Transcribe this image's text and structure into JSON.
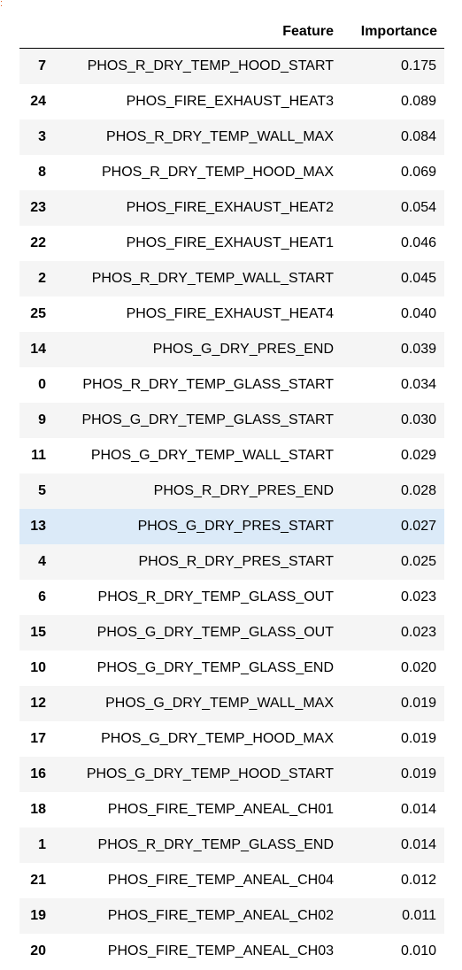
{
  "table": {
    "columns": {
      "index": "",
      "feature": "Feature",
      "importance": "Importance"
    },
    "selected_index": "13",
    "rows": [
      {
        "index": "7",
        "feature": "PHOS_R_DRY_TEMP_HOOD_START",
        "importance": "0.175"
      },
      {
        "index": "24",
        "feature": "PHOS_FIRE_EXHAUST_HEAT3",
        "importance": "0.089"
      },
      {
        "index": "3",
        "feature": "PHOS_R_DRY_TEMP_WALL_MAX",
        "importance": "0.084"
      },
      {
        "index": "8",
        "feature": "PHOS_R_DRY_TEMP_HOOD_MAX",
        "importance": "0.069"
      },
      {
        "index": "23",
        "feature": "PHOS_FIRE_EXHAUST_HEAT2",
        "importance": "0.054"
      },
      {
        "index": "22",
        "feature": "PHOS_FIRE_EXHAUST_HEAT1",
        "importance": "0.046"
      },
      {
        "index": "2",
        "feature": "PHOS_R_DRY_TEMP_WALL_START",
        "importance": "0.045"
      },
      {
        "index": "25",
        "feature": "PHOS_FIRE_EXHAUST_HEAT4",
        "importance": "0.040"
      },
      {
        "index": "14",
        "feature": "PHOS_G_DRY_PRES_END",
        "importance": "0.039"
      },
      {
        "index": "0",
        "feature": "PHOS_R_DRY_TEMP_GLASS_START",
        "importance": "0.034"
      },
      {
        "index": "9",
        "feature": "PHOS_G_DRY_TEMP_GLASS_START",
        "importance": "0.030"
      },
      {
        "index": "11",
        "feature": "PHOS_G_DRY_TEMP_WALL_START",
        "importance": "0.029"
      },
      {
        "index": "5",
        "feature": "PHOS_R_DRY_PRES_END",
        "importance": "0.028"
      },
      {
        "index": "13",
        "feature": "PHOS_G_DRY_PRES_START",
        "importance": "0.027"
      },
      {
        "index": "4",
        "feature": "PHOS_R_DRY_PRES_START",
        "importance": "0.025"
      },
      {
        "index": "6",
        "feature": "PHOS_R_DRY_TEMP_GLASS_OUT",
        "importance": "0.023"
      },
      {
        "index": "15",
        "feature": "PHOS_G_DRY_TEMP_GLASS_OUT",
        "importance": "0.023"
      },
      {
        "index": "10",
        "feature": "PHOS_G_DRY_TEMP_GLASS_END",
        "importance": "0.020"
      },
      {
        "index": "12",
        "feature": "PHOS_G_DRY_TEMP_WALL_MAX",
        "importance": "0.019"
      },
      {
        "index": "17",
        "feature": "PHOS_G_DRY_TEMP_HOOD_MAX",
        "importance": "0.019"
      },
      {
        "index": "16",
        "feature": "PHOS_G_DRY_TEMP_HOOD_START",
        "importance": "0.019"
      },
      {
        "index": "18",
        "feature": "PHOS_FIRE_TEMP_ANEAL_CH01",
        "importance": "0.014"
      },
      {
        "index": "1",
        "feature": "PHOS_R_DRY_TEMP_GLASS_END",
        "importance": "0.014"
      },
      {
        "index": "21",
        "feature": "PHOS_FIRE_TEMP_ANEAL_CH04",
        "importance": "0.012"
      },
      {
        "index": "19",
        "feature": "PHOS_FIRE_TEMP_ANEAL_CH02",
        "importance": "0.011"
      },
      {
        "index": "20",
        "feature": "PHOS_FIRE_TEMP_ANEAL_CH03",
        "importance": "0.010"
      }
    ]
  },
  "colors": {
    "row_odd": "#f5f5f5",
    "row_even": "#ffffff",
    "row_selected": "#dbeaf8",
    "marker": "#e05a1e"
  }
}
